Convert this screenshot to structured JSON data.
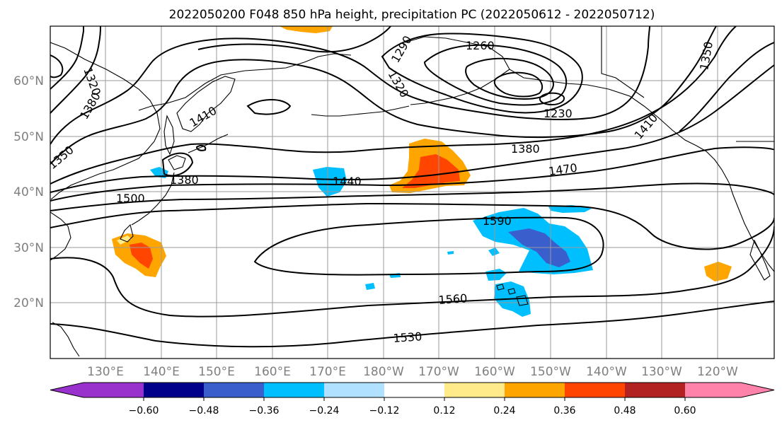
{
  "title": "2022050200 F048 850 hPa height, precipitation PC (2022050612 - 2022050712)",
  "lat_labels": [
    "60°N",
    "50°N",
    "40°N",
    "30°N",
    "20°N"
  ],
  "lon_labels": [
    "130°E",
    "140°E",
    "150°E",
    "160°E",
    "170°E",
    "180°W",
    "170°W",
    "160°W",
    "150°W",
    "140°W",
    "130°W",
    "120°W"
  ],
  "contour_labels": [
    "1320",
    "1380",
    "1350",
    "1410",
    "1380",
    "1500",
    "1290",
    "1260",
    "1320",
    "1230",
    "1380",
    "1410",
    "1470",
    "1440",
    "1590",
    "1560",
    "1530",
    "1350"
  ],
  "colorbar": {
    "tick_labels": [
      "−0.60",
      "−0.48",
      "−0.36",
      "−0.24",
      "−0.12",
      "0.12",
      "0.24",
      "0.36",
      "0.48",
      "0.60"
    ],
    "colors": [
      "#9932cc",
      "#00008b",
      "#3a5fcd",
      "#00bfff",
      "#b0e2ff",
      "#ffffff",
      "#ffeb8a",
      "#ffa500",
      "#ff4500",
      "#b22222",
      "#ff82ab"
    ]
  }
}
